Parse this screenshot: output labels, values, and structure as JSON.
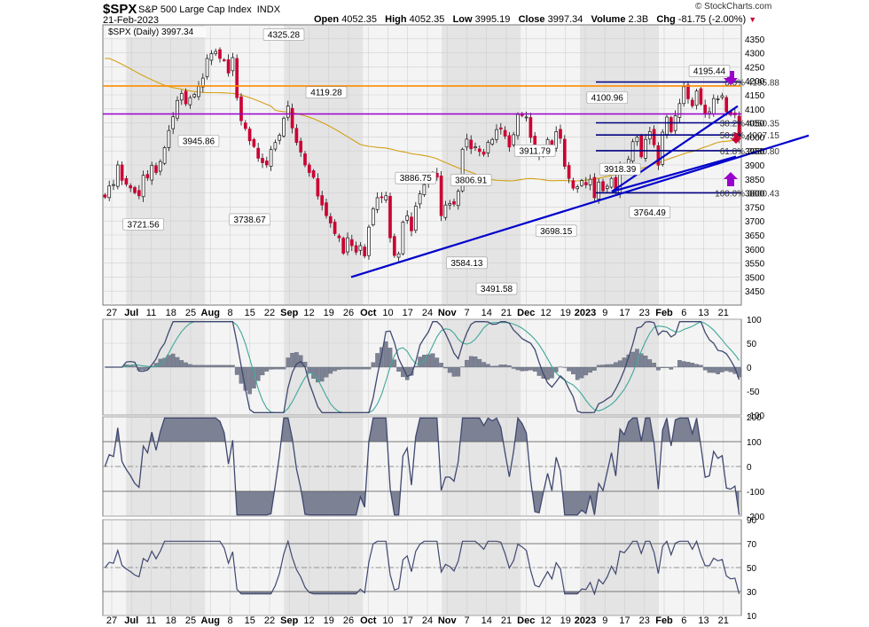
{
  "header": {
    "ticker": "$SPX",
    "name": "S&P 500 Large Cap Index",
    "exchange": "INDX",
    "date": "21-Feb-2023",
    "open_label": "Open",
    "open": "4052.35",
    "high_label": "High",
    "high": "4052.35",
    "low_label": "Low",
    "low": "3995.19",
    "close_label": "Close",
    "close": "3997.34",
    "volume_label": "Volume",
    "volume": "2.3B",
    "chg_label": "Chg",
    "chg": "-81.75 (-2.00%)",
    "legend": "$SPX (Daily) 3997.34",
    "brand": "© StockCharts.com"
  },
  "colors": {
    "up": "#ffffff",
    "down": "#cc0033",
    "orange": "#ff8c00",
    "purple": "#9900cc",
    "blue": "#0000cc",
    "navy": "#000080",
    "ma": "#d4a017",
    "grid": "#cfcfcf",
    "band": "#e4e4e4",
    "line": "#404870",
    "fill": "#7c8294",
    "green": "#3fa898"
  },
  "chart_data": [
    {
      "type": "candlestick",
      "name": "$SPX (Daily)",
      "ylim": [
        3400,
        4400
      ],
      "y_ticks": [
        3450,
        3500,
        3550,
        3600,
        3650,
        3700,
        3750,
        3800,
        3850,
        3900,
        3950,
        4000,
        4050,
        4100,
        4150,
        4200,
        4250,
        4300,
        4350
      ],
      "x_labels": [
        "27",
        "Jul",
        "11",
        "18",
        "25",
        "Aug",
        "8",
        "15",
        "22",
        "Sep",
        "12",
        "19",
        "26",
        "Oct",
        "10",
        "17",
        "24",
        "Nov",
        "7",
        "14",
        "21",
        "Dec",
        "12",
        "19",
        "2023",
        "9",
        "17",
        "23",
        "Feb",
        "6",
        "13",
        "21"
      ],
      "bold_labels": [
        "Jul",
        "Aug",
        "Sep",
        "Oct",
        "Nov",
        "Dec",
        "2023",
        "Feb"
      ],
      "closes": [
        3785,
        3825,
        3830,
        3900,
        3845,
        3831,
        3818,
        3801,
        3790,
        3863,
        3854,
        3899,
        3873,
        3912,
        3962,
        4023,
        4072,
        4130,
        4155,
        4118,
        4140,
        4152,
        4180,
        4210,
        4280,
        4297,
        4305,
        4280,
        4274,
        4228,
        4283,
        4140,
        4058,
        4030,
        3986,
        3966,
        3924,
        3908,
        3900,
        3955,
        3980,
        4006,
        4067,
        4110,
        4032,
        3980,
        3946,
        3900,
        3873,
        3856,
        3789,
        3757,
        3719,
        3693,
        3655,
        3640,
        3585,
        3640,
        3612,
        3589,
        3612,
        3575,
        3678,
        3744,
        3783,
        3783,
        3790,
        3640,
        3577,
        3583,
        3696,
        3719,
        3665,
        3753,
        3797,
        3830,
        3859,
        3872,
        3856,
        3719,
        3757,
        3763,
        3760,
        3806,
        3956,
        3992,
        3958,
        3965,
        3948,
        3938,
        3981,
        3991,
        4026,
        4028,
        4003,
        3964,
        4008,
        4080,
        4076,
        4071,
        3998,
        3941,
        3934,
        3963,
        3991,
        3958,
        4019,
        3995,
        3895,
        3852,
        3817,
        3822,
        3844,
        3829,
        3849,
        3783,
        3839,
        3808,
        3824,
        3852,
        3809,
        3895,
        3892,
        3920,
        3983,
        3999,
        3929,
        3991,
        4019,
        3972,
        3899,
        4017,
        4071,
        4018,
        4076,
        4119,
        4179,
        4136,
        4111,
        4164,
        4117,
        4081,
        4090,
        4137,
        4136,
        4147,
        4090,
        4079,
        4079,
        3997
      ],
      "labels": [
        {
          "text": "3945.86",
          "x": 0.15,
          "y": 3945.86,
          "side": "above"
        },
        {
          "text": "3738.67",
          "x": 0.23,
          "y": 3738.67,
          "side": "below"
        },
        {
          "text": "3721.56",
          "x": 0.06,
          "y": 3721.56,
          "side": "below"
        },
        {
          "text": "4325.28",
          "x": 0.28,
          "y": 4325.28,
          "side": "above"
        },
        {
          "text": "4119.28",
          "x": 0.35,
          "y": 4119.28,
          "side": "above"
        },
        {
          "text": "3886.75",
          "x": 0.49,
          "y": 3886.75,
          "side": "below"
        },
        {
          "text": "3806.91",
          "x": 0.58,
          "y": 3806.91,
          "side": "above"
        },
        {
          "text": "3584.13",
          "x": 0.57,
          "y": 3584.13,
          "side": "below"
        },
        {
          "text": "3491.58",
          "x": 0.62,
          "y": 3491.58,
          "side": "below"
        },
        {
          "text": "3911.79",
          "x": 0.68,
          "y": 3911.79,
          "side": "above"
        },
        {
          "text": "3698.15",
          "x": 0.71,
          "y": 3698.15,
          "side": "below"
        },
        {
          "text": "4100.96",
          "x": 0.79,
          "y": 4100.96,
          "side": "above"
        },
        {
          "text": "3918.39",
          "x": 0.81,
          "y": 3918.39,
          "side": "below"
        },
        {
          "text": "3764.49",
          "x": 0.86,
          "y": 3764.49,
          "side": "below"
        },
        {
          "text": "4195.44",
          "x": 0.95,
          "y": 4195.44,
          "side": "above"
        }
      ],
      "horizontal_lines": [
        {
          "y": 4182,
          "color": "orange"
        },
        {
          "y": 4082,
          "color": "purple"
        }
      ],
      "fib_levels": [
        {
          "pct": "0.0%",
          "value": "4195.88",
          "y": 4195.88
        },
        {
          "pct": "38.2%",
          "value": "4050.35",
          "y": 4050.35
        },
        {
          "pct": "50.0%",
          "value": "4007.15",
          "y": 4007.15
        },
        {
          "pct": "61.8%",
          "value": "3950.80",
          "y": 3950.8
        },
        {
          "pct": "100.0%",
          "value": "3800.43",
          "y": 3800.43
        }
      ]
    },
    {
      "type": "line",
      "name": "macd",
      "ylim": [
        -100,
        100
      ],
      "y_ticks": [
        -100,
        -50,
        0,
        50,
        100
      ]
    },
    {
      "type": "area",
      "name": "cci",
      "ylim": [
        -200,
        200
      ],
      "y_ticks": [
        -200,
        -100,
        0,
        100,
        200
      ]
    },
    {
      "type": "line",
      "name": "rsi",
      "ylim": [
        10,
        90
      ],
      "y_ticks": [
        10,
        30,
        50,
        70,
        90
      ]
    }
  ]
}
